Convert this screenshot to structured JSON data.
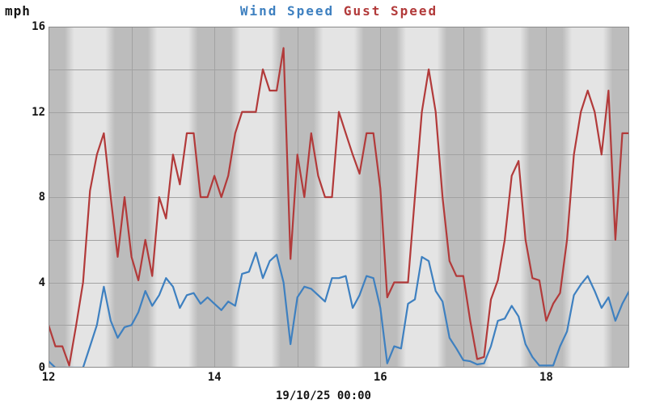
{
  "header": {
    "unit_label": "mph"
  },
  "chart_data": {
    "type": "line",
    "title": "Wind Speed Gust Speed",
    "ylabel": "mph",
    "xlabel": "",
    "ylim": [
      0,
      16
    ],
    "xlim_hours": [
      12,
      19
    ],
    "y_ticks": [
      0,
      4,
      8,
      12,
      16
    ],
    "y_grid_step": 2,
    "x_ticks": [
      {
        "hour": 12,
        "label": "12"
      },
      {
        "hour": 14,
        "label": "14"
      },
      {
        "hour": 16,
        "label": "16"
      },
      {
        "hour": 18,
        "label": "18"
      }
    ],
    "x_grid_step_hours": 1,
    "x_axis_date_label": "19/10/25 00:00",
    "grid": "on",
    "legend_position": "top-center",
    "sample_start_hour": 12,
    "sample_step_minutes": 5,
    "series": [
      {
        "name": "Wind Speed",
        "color": "#3e80c0",
        "values": [
          0.3,
          0,
          0,
          0,
          0,
          0,
          1.0,
          2.0,
          3.8,
          2.2,
          1.4,
          1.9,
          2.0,
          2.6,
          3.6,
          2.9,
          3.4,
          4.2,
          3.8,
          2.8,
          3.4,
          3.5,
          3.0,
          3.3,
          3.0,
          2.7,
          3.1,
          2.9,
          4.4,
          4.5,
          5.4,
          4.2,
          5.0,
          5.3,
          4.0,
          1.1,
          3.3,
          3.8,
          3.7,
          3.4,
          3.1,
          4.2,
          4.2,
          4.3,
          2.8,
          3.4,
          4.3,
          4.2,
          2.8,
          0.2,
          1.0,
          0.9,
          3.0,
          3.2,
          5.2,
          5.0,
          3.6,
          3.1,
          1.4,
          0.9,
          0.35,
          0.3,
          0.15,
          0.2,
          1.0,
          2.2,
          2.3,
          2.9,
          2.4,
          1.1,
          0.5,
          0.1,
          0.1,
          0.1,
          1.0,
          1.7,
          3.4,
          3.9,
          4.3,
          3.6,
          2.8,
          3.3,
          2.2,
          3.0,
          3.6
        ]
      },
      {
        "name": "Gust Speed",
        "color": "#b23a3a",
        "values": [
          2.0,
          1.0,
          1.0,
          0.1,
          2.0,
          4.0,
          8.3,
          10.0,
          11.0,
          8.0,
          5.2,
          8.0,
          5.2,
          4.1,
          6.0,
          4.3,
          8.0,
          7.0,
          10.0,
          8.6,
          11.0,
          11.0,
          8.0,
          8.0,
          9.0,
          8.0,
          9.0,
          11.0,
          12.0,
          12.0,
          12.0,
          14.0,
          13.0,
          13.0,
          15.0,
          5.1,
          10.0,
          8.0,
          11.0,
          9.0,
          8.0,
          8.0,
          12.0,
          11.0,
          10.0,
          9.1,
          11.0,
          11.0,
          8.4,
          3.3,
          4.0,
          4.0,
          4.0,
          8.0,
          12.0,
          14.0,
          12.0,
          8.0,
          5.0,
          4.3,
          4.3,
          2.2,
          0.4,
          0.5,
          3.2,
          4.1,
          6.0,
          9.0,
          9.7,
          6.0,
          4.2,
          4.1,
          2.2,
          3.0,
          3.5,
          6.0,
          10.0,
          12.0,
          13.0,
          12.0,
          10.0,
          13.0,
          6.0,
          11.0,
          11.0
        ]
      }
    ],
    "background_bands": {
      "dark": "#bcbcbc",
      "light": "#e4e4e4",
      "period_hours": 1,
      "dark_centered_on": "hour_marks"
    },
    "grid_color": "#a2a2a2",
    "border_color": "#8a8a8a",
    "line_width": 2.2
  }
}
